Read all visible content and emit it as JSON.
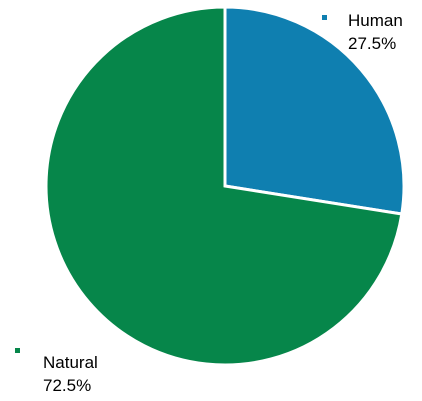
{
  "chart_data": {
    "type": "pie",
    "title": "",
    "slices": [
      {
        "label": "Human",
        "percent_label": "27.5%",
        "value": 27.5,
        "color": "#0f7fb0"
      },
      {
        "label": "Natural",
        "percent_label": "72.5%",
        "value": 72.5,
        "color": "#06864a"
      }
    ],
    "start": "12 o'clock",
    "direction": "clockwise",
    "legend": "none",
    "labels": "outside"
  }
}
